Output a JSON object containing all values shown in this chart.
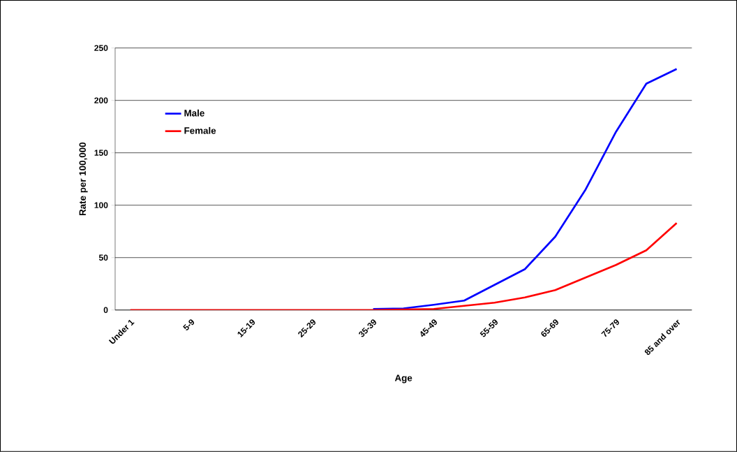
{
  "chart_data": {
    "type": "line",
    "xlabel": "Age",
    "ylabel": "Rate per 100,000",
    "categories": [
      "Under 1",
      null,
      "5-9",
      null,
      "15-19",
      null,
      "25-29",
      null,
      "35-39",
      null,
      "45-49",
      null,
      "55-59",
      null,
      "65-69",
      null,
      "75-79",
      null,
      "85 and over"
    ],
    "series": [
      {
        "name": "Male",
        "color": "#0000ff",
        "values": [
          null,
          null,
          null,
          null,
          null,
          null,
          null,
          null,
          1,
          1.5,
          5,
          9,
          24,
          39,
          70,
          115,
          170,
          216,
          230
        ]
      },
      {
        "name": "Female",
        "color": "#ff0000",
        "values": [
          0,
          0,
          0,
          0,
          0,
          0,
          0,
          0,
          0,
          0.5,
          1,
          4,
          7,
          12,
          19,
          31,
          43,
          57,
          83
        ]
      }
    ],
    "ylim": [
      0,
      250
    ],
    "yticks": [
      0,
      50,
      100,
      150,
      200,
      250
    ],
    "grid": "y",
    "legend": "left",
    "marker": "none",
    "line_style": "solid"
  }
}
